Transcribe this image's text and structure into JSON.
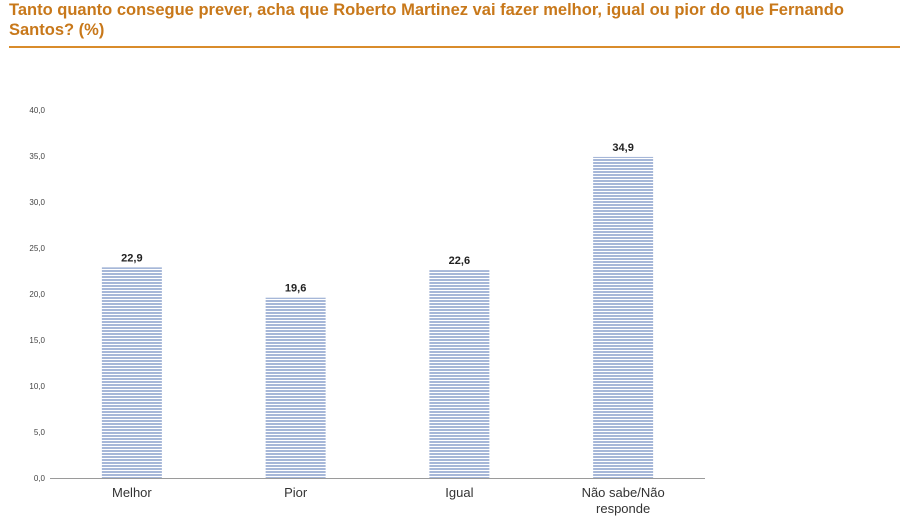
{
  "title": "Tanto quanto consegue prever, acha que Roberto Martinez vai fazer melhor, igual ou pior do que Fernando Santos? (%)",
  "colors": {
    "title": "#c8781a",
    "rule": "#d98c2b",
    "bar_fill": "#a6b7d8",
    "bar_stripe": "#ffffff"
  },
  "chart_data": {
    "type": "bar",
    "title": "Tanto quanto consegue prever, acha que Roberto Martinez vai fazer melhor, igual ou pior do que Fernando Santos? (%)",
    "categories": [
      [
        "Melhor"
      ],
      [
        "Pior"
      ],
      [
        "Igual"
      ],
      [
        "Não sabe/Não",
        "responde"
      ]
    ],
    "values": [
      22.9,
      19.6,
      22.6,
      34.9
    ],
    "data_labels": [
      "22,9",
      "19,6",
      "22,6",
      "34,9"
    ],
    "yticks": [
      0,
      5,
      10,
      15,
      20,
      25,
      30,
      35,
      40
    ],
    "ytick_labels": [
      "0,0",
      "5,0",
      "10,0",
      "15,0",
      "20,0",
      "25,0",
      "30,0",
      "35,0",
      "40,0"
    ],
    "ylim": [
      0,
      40
    ],
    "xlabel": "",
    "ylabel": "",
    "grid": false,
    "legend": "none"
  }
}
